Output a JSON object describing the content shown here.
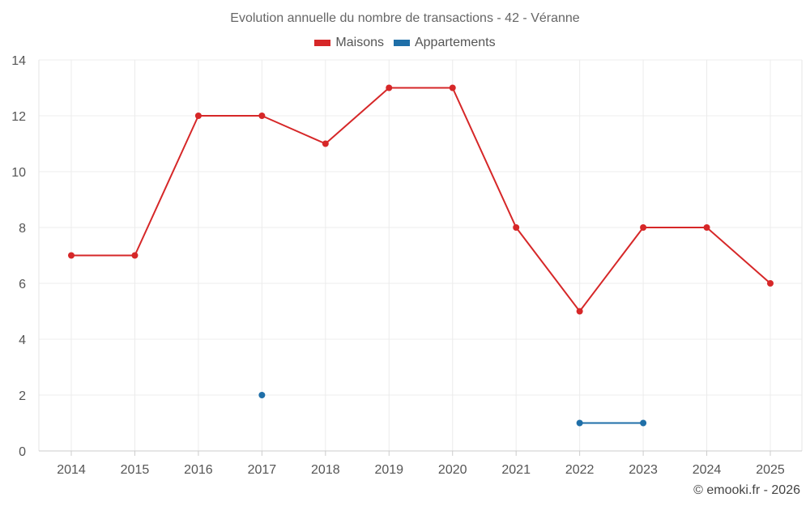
{
  "chart_data": {
    "type": "line",
    "title": "Evolution annuelle du nombre de transactions - 42 - Véranne",
    "xlabel": "",
    "ylabel": "",
    "categories": [
      "2014",
      "2015",
      "2016",
      "2017",
      "2018",
      "2019",
      "2020",
      "2021",
      "2022",
      "2023",
      "2024",
      "2025"
    ],
    "ylim": [
      0,
      14
    ],
    "yticks": [
      0,
      2,
      4,
      6,
      8,
      10,
      12,
      14
    ],
    "grid": true,
    "legend_position": "top-center",
    "series": [
      {
        "name": "Maisons",
        "color": "#d62728",
        "values": [
          7,
          7,
          12,
          12,
          11,
          13,
          13,
          8,
          5,
          8,
          8,
          6
        ]
      },
      {
        "name": "Appartements",
        "color": "#1f6fa8",
        "values": [
          null,
          null,
          null,
          2,
          null,
          null,
          null,
          null,
          1,
          1,
          null,
          null
        ]
      }
    ]
  },
  "footer": {
    "copyright": "© emooki.fr - 2026"
  }
}
